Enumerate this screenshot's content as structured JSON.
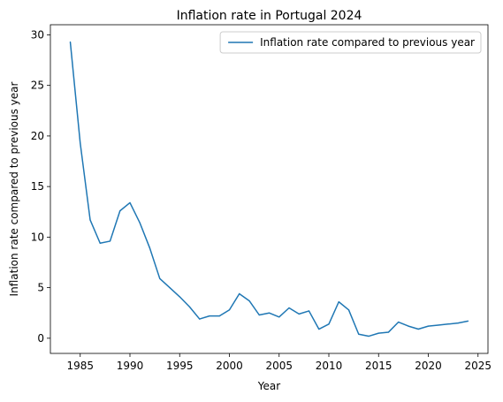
{
  "chart_data": {
    "type": "line",
    "title": "Inflation rate in Portugal 2024",
    "xlabel": "Year",
    "ylabel": "Inflation rate compared to previous year",
    "xlim": [
      1982,
      2026
    ],
    "ylim": [
      -1.5,
      31
    ],
    "xticks": [
      1985,
      1990,
      1995,
      2000,
      2005,
      2010,
      2015,
      2020,
      2025
    ],
    "yticks": [
      0,
      5,
      10,
      15,
      20,
      25,
      30
    ],
    "grid": false,
    "legend_position": "top-right",
    "series": [
      {
        "name": "Inflation rate compared to previous year",
        "color": "#1f77b4",
        "x": [
          1984,
          1985,
          1986,
          1987,
          1988,
          1989,
          1990,
          1991,
          1992,
          1993,
          1994,
          1995,
          1996,
          1997,
          1998,
          1999,
          2000,
          2001,
          2002,
          2003,
          2004,
          2005,
          2006,
          2007,
          2008,
          2009,
          2010,
          2011,
          2012,
          2013,
          2014,
          2015,
          2016,
          2017,
          2018,
          2019,
          2020,
          2021,
          2022,
          2023,
          2024
        ],
        "y": [
          29.3,
          19.3,
          11.7,
          9.4,
          9.6,
          12.6,
          13.4,
          11.4,
          8.9,
          5.9,
          5.0,
          4.1,
          3.1,
          1.9,
          2.2,
          2.2,
          2.8,
          4.4,
          3.7,
          2.3,
          2.5,
          2.1,
          3.0,
          2.4,
          2.7,
          0.9,
          1.4,
          3.6,
          2.8,
          0.4,
          0.2,
          0.5,
          0.6,
          1.6,
          1.2,
          0.9,
          1.2,
          1.3,
          1.4,
          1.5,
          1.7
        ]
      }
    ]
  }
}
